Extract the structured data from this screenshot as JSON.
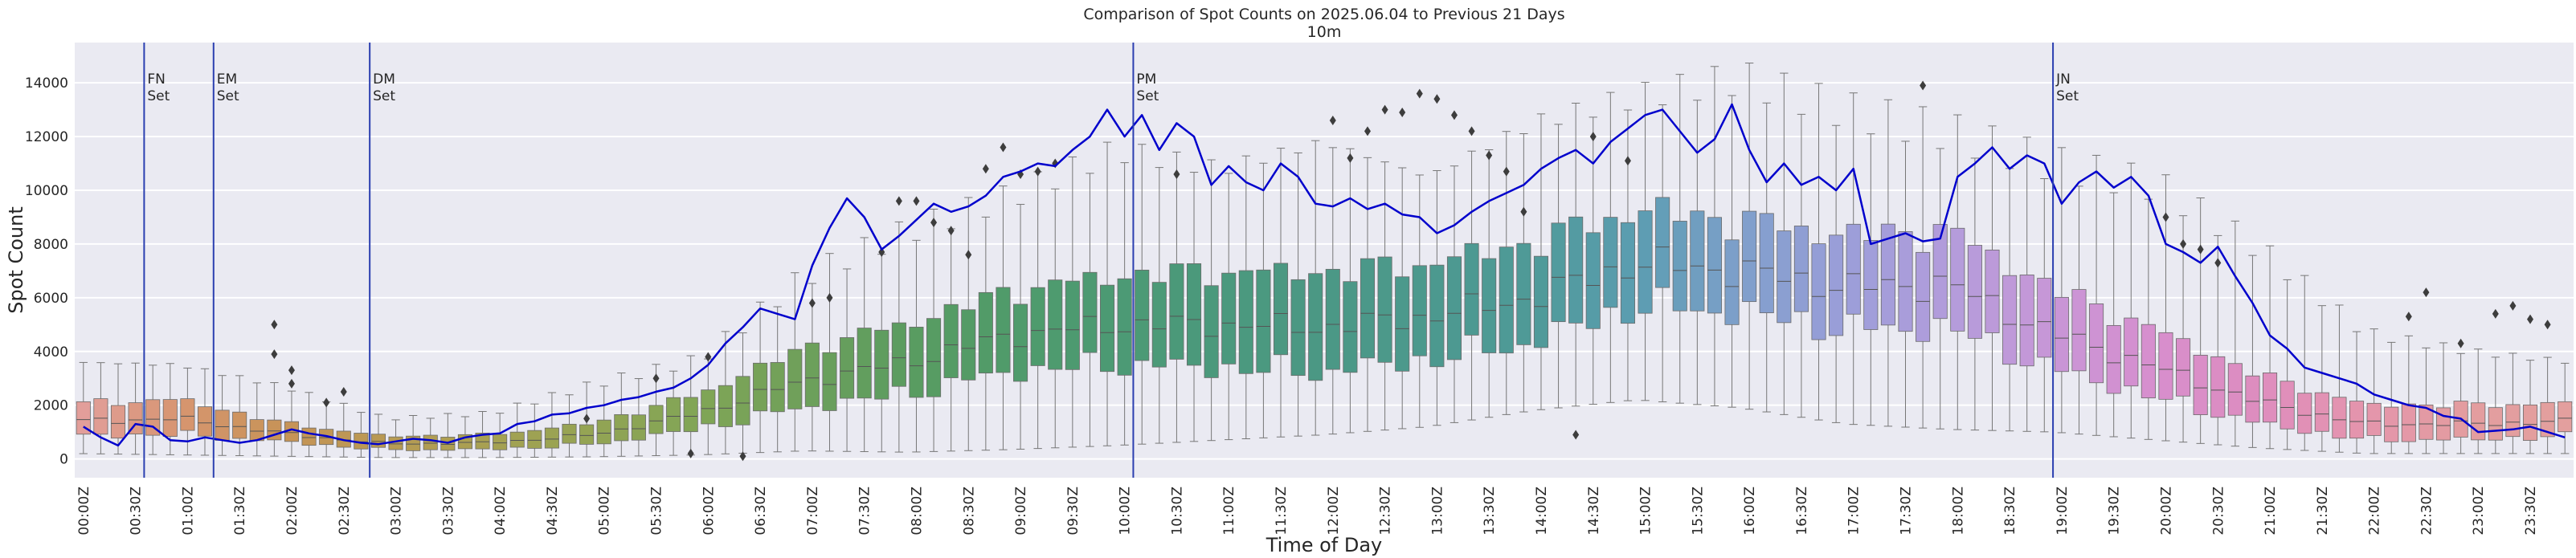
{
  "chart_data": {
    "type": "box",
    "title": "Comparison of Spot Counts on 2025.06.04 to Previous 21 Days",
    "subtitle": "10m",
    "xlabel": "Time of Day",
    "ylabel": "Spot Count",
    "ylim": [
      -700,
      15500
    ],
    "yticks": [
      0,
      2000,
      4000,
      6000,
      8000,
      10000,
      12000,
      14000
    ],
    "grid": true,
    "bins_per_day": 144,
    "bin_minutes": 10,
    "xtick_labels": [
      "00:00Z",
      "00:30Z",
      "01:00Z",
      "01:30Z",
      "02:00Z",
      "02:30Z",
      "03:00Z",
      "03:30Z",
      "04:00Z",
      "04:30Z",
      "05:00Z",
      "05:30Z",
      "06:00Z",
      "06:30Z",
      "07:00Z",
      "07:30Z",
      "08:00Z",
      "08:30Z",
      "09:00Z",
      "09:30Z",
      "10:00Z",
      "10:30Z",
      "11:00Z",
      "11:30Z",
      "12:00Z",
      "12:30Z",
      "13:00Z",
      "13:30Z",
      "14:00Z",
      "14:30Z",
      "15:00Z",
      "15:30Z",
      "16:00Z",
      "16:30Z",
      "17:00Z",
      "17:30Z",
      "18:00Z",
      "18:30Z",
      "19:00Z",
      "19:30Z",
      "20:00Z",
      "20:30Z",
      "21:00Z",
      "21:30Z",
      "22:00Z",
      "22:30Z",
      "23:00Z",
      "23:30Z"
    ],
    "median_anchors": [
      {
        "hour": 0,
        "value": 1400
      },
      {
        "hour": 1,
        "value": 1500
      },
      {
        "hour": 2,
        "value": 950
      },
      {
        "hour": 3,
        "value": 560
      },
      {
        "hour": 4,
        "value": 600
      },
      {
        "hour": 5,
        "value": 900
      },
      {
        "hour": 6,
        "value": 1700
      },
      {
        "hour": 7,
        "value": 2900
      },
      {
        "hour": 8,
        "value": 3600
      },
      {
        "hour": 9,
        "value": 4600
      },
      {
        "hour": 10,
        "value": 5000
      },
      {
        "hour": 11,
        "value": 5000
      },
      {
        "hour": 12,
        "value": 4900
      },
      {
        "hour": 13,
        "value": 5300
      },
      {
        "hour": 14,
        "value": 6000
      },
      {
        "hour": 15,
        "value": 7300
      },
      {
        "hour": 16,
        "value": 7000
      },
      {
        "hour": 17,
        "value": 6400
      },
      {
        "hour": 18,
        "value": 6500
      },
      {
        "hour": 19,
        "value": 4700
      },
      {
        "hour": 20,
        "value": 3400
      },
      {
        "hour": 21,
        "value": 2100
      },
      {
        "hour": 22,
        "value": 1300
      },
      {
        "hour": 23,
        "value": 1300
      },
      {
        "hour": 24,
        "value": 1400
      }
    ],
    "iqr_anchors": [
      {
        "hour": 0,
        "value": 1200
      },
      {
        "hour": 1,
        "value": 1300
      },
      {
        "hour": 2,
        "value": 700
      },
      {
        "hour": 3,
        "value": 500
      },
      {
        "hour": 4,
        "value": 550
      },
      {
        "hour": 5,
        "value": 800
      },
      {
        "hour": 6,
        "value": 1300
      },
      {
        "hour": 7,
        "value": 2200
      },
      {
        "hour": 8,
        "value": 2600
      },
      {
        "hour": 9,
        "value": 3000
      },
      {
        "hour": 10,
        "value": 3300
      },
      {
        "hour": 11,
        "value": 3600
      },
      {
        "hour": 12,
        "value": 3700
      },
      {
        "hour": 13,
        "value": 3600
      },
      {
        "hour": 14,
        "value": 3700
      },
      {
        "hour": 15,
        "value": 3600
      },
      {
        "hour": 16,
        "value": 3400
      },
      {
        "hour": 17,
        "value": 3500
      },
      {
        "hour": 18,
        "value": 3600
      },
      {
        "hour": 19,
        "value": 3000
      },
      {
        "hour": 20,
        "value": 2500
      },
      {
        "hour": 21,
        "value": 1800
      },
      {
        "hour": 22,
        "value": 1300
      },
      {
        "hour": 23,
        "value": 1300
      },
      {
        "hour": 24,
        "value": 1200
      }
    ],
    "whisker_max_anchors": [
      {
        "hour": 0,
        "value": 3600
      },
      {
        "hour": 1,
        "value": 3500
      },
      {
        "hour": 2,
        "value": 2700
      },
      {
        "hour": 3,
        "value": 1500
      },
      {
        "hour": 4,
        "value": 1700
      },
      {
        "hour": 5,
        "value": 2800
      },
      {
        "hour": 6,
        "value": 3700
      },
      {
        "hour": 7,
        "value": 6800
      },
      {
        "hour": 8,
        "value": 8500
      },
      {
        "hour": 9,
        "value": 9800
      },
      {
        "hour": 10,
        "value": 11500
      },
      {
        "hour": 11,
        "value": 10800
      },
      {
        "hour": 12,
        "value": 11800
      },
      {
        "hour": 13,
        "value": 10500
      },
      {
        "hour": 14,
        "value": 12500
      },
      {
        "hour": 15,
        "value": 13500
      },
      {
        "hour": 16,
        "value": 14200
      },
      {
        "hour": 17,
        "value": 13000
      },
      {
        "hour": 18,
        "value": 12200
      },
      {
        "hour": 19,
        "value": 11000
      },
      {
        "hour": 20,
        "value": 10200
      },
      {
        "hour": 21,
        "value": 7800
      },
      {
        "hour": 22,
        "value": 4700
      },
      {
        "hour": 23,
        "value": 4000
      },
      {
        "hour": 24,
        "value": 3600
      }
    ],
    "whisker_min_anchors": [
      {
        "hour": 0,
        "value": 200
      },
      {
        "hour": 1,
        "value": 150
      },
      {
        "hour": 2,
        "value": 100
      },
      {
        "hour": 3,
        "value": 50
      },
      {
        "hour": 4,
        "value": 50
      },
      {
        "hour": 5,
        "value": 80
      },
      {
        "hour": 6,
        "value": 150
      },
      {
        "hour": 7,
        "value": 300
      },
      {
        "hour": 8,
        "value": 250
      },
      {
        "hour": 9,
        "value": 350
      },
      {
        "hour": 10,
        "value": 500
      },
      {
        "hour": 11,
        "value": 700
      },
      {
        "hour": 12,
        "value": 900
      },
      {
        "hour": 13,
        "value": 1200
      },
      {
        "hour": 14,
        "value": 1800
      },
      {
        "hour": 15,
        "value": 2200
      },
      {
        "hour": 16,
        "value": 1900
      },
      {
        "hour": 17,
        "value": 1300
      },
      {
        "hour": 18,
        "value": 1100
      },
      {
        "hour": 19,
        "value": 1000
      },
      {
        "hour": 20,
        "value": 700
      },
      {
        "hour": 21,
        "value": 400
      },
      {
        "hour": 22,
        "value": 200
      },
      {
        "hour": 23,
        "value": 200
      },
      {
        "hour": 24,
        "value": 200
      }
    ],
    "series": [
      {
        "name": "2025.06.04",
        "color": "#0000cc",
        "hourly_values": [
          [
            1200,
            800,
            500,
            1300,
            1200,
            700
          ],
          [
            650,
            800,
            700,
            600,
            700,
            900
          ],
          [
            1100,
            950,
            850,
            700,
            600,
            550
          ],
          [
            650,
            750,
            700,
            600,
            800,
            900
          ],
          [
            950,
            1300,
            1400,
            1650,
            1700,
            1900
          ],
          [
            2000,
            2200,
            2300,
            2500,
            2650,
            3000
          ],
          [
            3500,
            4300,
            4900,
            5600,
            5400,
            5200
          ],
          [
            7200,
            8600,
            9700,
            9000,
            7800,
            8300
          ],
          [
            8900,
            9500,
            9200,
            9400,
            9800,
            10500
          ],
          [
            10700,
            11000,
            10900,
            11500,
            12000,
            13000
          ],
          [
            12000,
            12800,
            11500,
            12500,
            12000,
            10200
          ],
          [
            10900,
            10300,
            10000,
            11000,
            10500,
            9500
          ],
          [
            9400,
            9700,
            9300,
            9500,
            9100,
            9000
          ],
          [
            8400,
            8700,
            9200,
            9600,
            9900,
            10200
          ],
          [
            10800,
            11200,
            11500,
            11000,
            11800,
            12300
          ],
          [
            12800,
            13000,
            12200,
            11400,
            11900,
            13200
          ],
          [
            11500,
            10300,
            11000,
            10200,
            10500,
            10000
          ],
          [
            10800,
            8000,
            8200,
            8400,
            8100,
            8200
          ],
          [
            10500,
            11000,
            11600,
            10800,
            11300,
            11000
          ],
          [
            9500,
            10300,
            10700,
            10100,
            10500,
            9800
          ],
          [
            8000,
            7700,
            7300,
            7900,
            6800,
            5800
          ],
          [
            4600,
            4100,
            3400,
            3200,
            3000,
            2800
          ],
          [
            2400,
            2200,
            2000,
            1900,
            1600,
            1500
          ],
          [
            1000,
            1050,
            1100,
            1200,
            1000,
            800
          ]
        ]
      }
    ],
    "box_palette": [
      {
        "hour": 0,
        "color": "#e39f9e"
      },
      {
        "hour": 1,
        "color": "#d79570"
      },
      {
        "hour": 2,
        "color": "#c79357"
      },
      {
        "hour": 3,
        "color": "#b89a53"
      },
      {
        "hour": 4,
        "color": "#a6a152"
      },
      {
        "hour": 5,
        "color": "#93a454"
      },
      {
        "hour": 6,
        "color": "#80a556"
      },
      {
        "hour": 7,
        "color": "#6ea05a"
      },
      {
        "hour": 8,
        "color": "#5a9c60"
      },
      {
        "hour": 9,
        "color": "#4f9b6b"
      },
      {
        "hour": 10,
        "color": "#4c9a74"
      },
      {
        "hour": 11,
        "color": "#4b997d"
      },
      {
        "hour": 12,
        "color": "#4b9885"
      },
      {
        "hour": 13,
        "color": "#4c998e"
      },
      {
        "hour": 14,
        "color": "#4f9a98"
      },
      {
        "hour": 15,
        "color": "#5b9db1"
      },
      {
        "hour": 16,
        "color": "#7f9fcb"
      },
      {
        "hour": 17,
        "color": "#9b9ed9"
      },
      {
        "hour": 18,
        "color": "#b39cdb"
      },
      {
        "hour": 19,
        "color": "#c896d7"
      },
      {
        "hour": 20,
        "color": "#d78ecd"
      },
      {
        "hour": 21,
        "color": "#de8dbe"
      },
      {
        "hour": 22,
        "color": "#e495ac"
      },
      {
        "hour": 23,
        "color": "#e39d9f"
      },
      {
        "hour": 24,
        "color": "#e39f9e"
      }
    ],
    "outliers": [
      {
        "time": "01:50Z",
        "value": 5000
      },
      {
        "time": "01:50Z",
        "value": 3900
      },
      {
        "time": "02:00Z",
        "value": 3300
      },
      {
        "time": "02:00Z",
        "value": 2800
      },
      {
        "time": "02:20Z",
        "value": 2100
      },
      {
        "time": "02:30Z",
        "value": 2500
      },
      {
        "time": "04:50Z",
        "value": 1500
      },
      {
        "time": "05:30Z",
        "value": 3000
      },
      {
        "time": "06:00Z",
        "value": 3800
      },
      {
        "time": "05:50Z",
        "value": 200
      },
      {
        "time": "06:20Z",
        "value": 100
      },
      {
        "time": "07:00Z",
        "value": 5800
      },
      {
        "time": "07:10Z",
        "value": 6000
      },
      {
        "time": "07:40Z",
        "value": 7700
      },
      {
        "time": "07:50Z",
        "value": 9600
      },
      {
        "time": "08:00Z",
        "value": 9600
      },
      {
        "time": "08:10Z",
        "value": 8800
      },
      {
        "time": "08:20Z",
        "value": 8500
      },
      {
        "time": "08:30Z",
        "value": 7600
      },
      {
        "time": "08:40Z",
        "value": 10800
      },
      {
        "time": "08:50Z",
        "value": 11600
      },
      {
        "time": "09:00Z",
        "value": 10600
      },
      {
        "time": "09:10Z",
        "value": 10700
      },
      {
        "time": "09:20Z",
        "value": 11000
      },
      {
        "time": "10:30Z",
        "value": 10600
      },
      {
        "time": "12:00Z",
        "value": 12600
      },
      {
        "time": "12:10Z",
        "value": 11200
      },
      {
        "time": "12:20Z",
        "value": 12200
      },
      {
        "time": "12:30Z",
        "value": 13000
      },
      {
        "time": "12:40Z",
        "value": 12900
      },
      {
        "time": "12:50Z",
        "value": 13600
      },
      {
        "time": "13:00Z",
        "value": 13400
      },
      {
        "time": "13:10Z",
        "value": 12800
      },
      {
        "time": "13:20Z",
        "value": 12200
      },
      {
        "time": "13:30Z",
        "value": 11300
      },
      {
        "time": "13:40Z",
        "value": 10700
      },
      {
        "time": "13:50Z",
        "value": 9200
      },
      {
        "time": "14:20Z",
        "value": 900
      },
      {
        "time": "14:30Z",
        "value": 12000
      },
      {
        "time": "14:50Z",
        "value": 11100
      },
      {
        "time": "17:40Z",
        "value": 13900
      },
      {
        "time": "20:00Z",
        "value": 9000
      },
      {
        "time": "20:10Z",
        "value": 8000
      },
      {
        "time": "20:20Z",
        "value": 7800
      },
      {
        "time": "20:30Z",
        "value": 7300
      },
      {
        "time": "22:20Z",
        "value": 5300
      },
      {
        "time": "22:30Z",
        "value": 6200
      },
      {
        "time": "22:50Z",
        "value": 4300
      },
      {
        "time": "23:10Z",
        "value": 5400
      },
      {
        "time": "23:20Z",
        "value": 5700
      },
      {
        "time": "23:30Z",
        "value": 5200
      },
      {
        "time": "23:40Z",
        "value": 5000
      }
    ],
    "events": [
      {
        "time": "00:40Z",
        "label": "FN",
        "sublabel": "Set"
      },
      {
        "time": "01:20Z",
        "label": "EM",
        "sublabel": "Set"
      },
      {
        "time": "02:50Z",
        "label": "DM",
        "sublabel": "Set"
      },
      {
        "time": "10:10Z",
        "label": "PM",
        "sublabel": "Set"
      },
      {
        "time": "19:00Z",
        "label": "JN",
        "sublabel": "Set"
      }
    ],
    "colors": {
      "plot_background": "#eaeaf2",
      "grid": "#ffffff",
      "event_line": "#2b3fb0",
      "median": "#555555",
      "whisker": "#777777",
      "outlier": "#3d3d3d"
    }
  }
}
